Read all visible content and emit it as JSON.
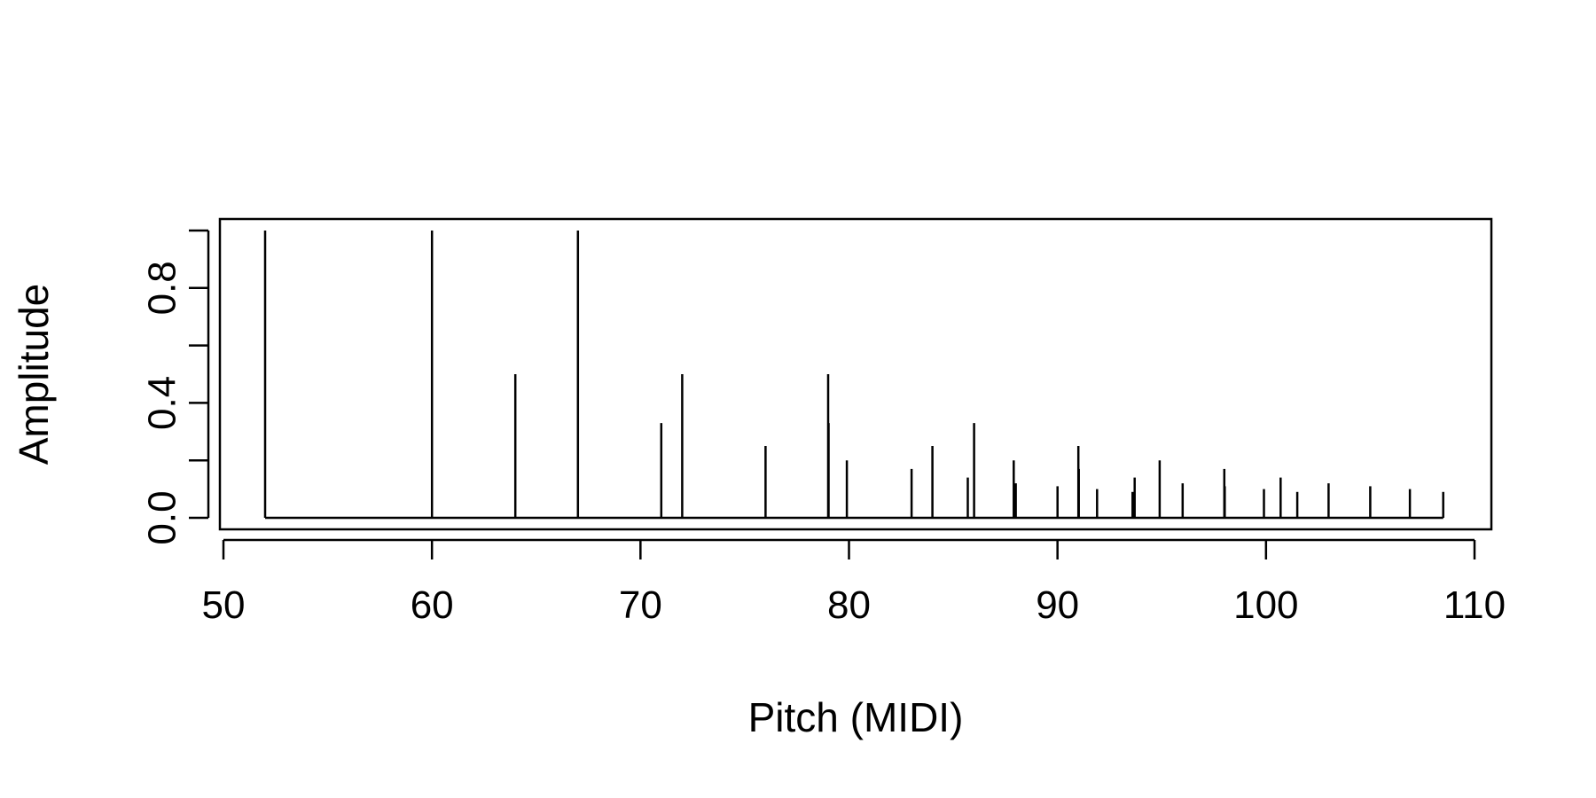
{
  "chart_data": {
    "type": "bar",
    "subtype": "stem",
    "xlabel": "Pitch (MIDI)",
    "ylabel": "Amplitude",
    "xlim": [
      50,
      110
    ],
    "ylim": [
      0,
      1
    ],
    "x_ticks": [
      "50",
      "60",
      "70",
      "80",
      "90",
      "100",
      "110"
    ],
    "y_ticks": [
      "0.0",
      "0.4",
      "0.8"
    ],
    "grid": false,
    "color": "#000000",
    "points": [
      {
        "x": 52.0,
        "y": 1.0
      },
      {
        "x": 60.0,
        "y": 1.0
      },
      {
        "x": 64.0,
        "y": 0.5
      },
      {
        "x": 67.0,
        "y": 1.0
      },
      {
        "x": 71.0,
        "y": 0.33
      },
      {
        "x": 72.0,
        "y": 0.5
      },
      {
        "x": 76.0,
        "y": 0.25
      },
      {
        "x": 79.0,
        "y": 0.5
      },
      {
        "x": 79.02,
        "y": 0.33
      },
      {
        "x": 79.9,
        "y": 0.2
      },
      {
        "x": 83.0,
        "y": 0.17
      },
      {
        "x": 84.0,
        "y": 0.25
      },
      {
        "x": 85.7,
        "y": 0.14
      },
      {
        "x": 86.0,
        "y": 0.33
      },
      {
        "x": 87.9,
        "y": 0.2
      },
      {
        "x": 88.0,
        "y": 0.12
      },
      {
        "x": 90.0,
        "y": 0.11
      },
      {
        "x": 91.0,
        "y": 0.25
      },
      {
        "x": 91.02,
        "y": 0.17
      },
      {
        "x": 91.9,
        "y": 0.1
      },
      {
        "x": 93.6,
        "y": 0.09
      },
      {
        "x": 93.7,
        "y": 0.14
      },
      {
        "x": 94.9,
        "y": 0.2
      },
      {
        "x": 96.0,
        "y": 0.12
      },
      {
        "x": 98.0,
        "y": 0.17
      },
      {
        "x": 98.02,
        "y": 0.11
      },
      {
        "x": 99.9,
        "y": 0.1
      },
      {
        "x": 100.7,
        "y": 0.14
      },
      {
        "x": 101.5,
        "y": 0.09
      },
      {
        "x": 103.0,
        "y": 0.12
      },
      {
        "x": 105.0,
        "y": 0.11
      },
      {
        "x": 106.9,
        "y": 0.1
      },
      {
        "x": 108.5,
        "y": 0.09
      }
    ]
  }
}
